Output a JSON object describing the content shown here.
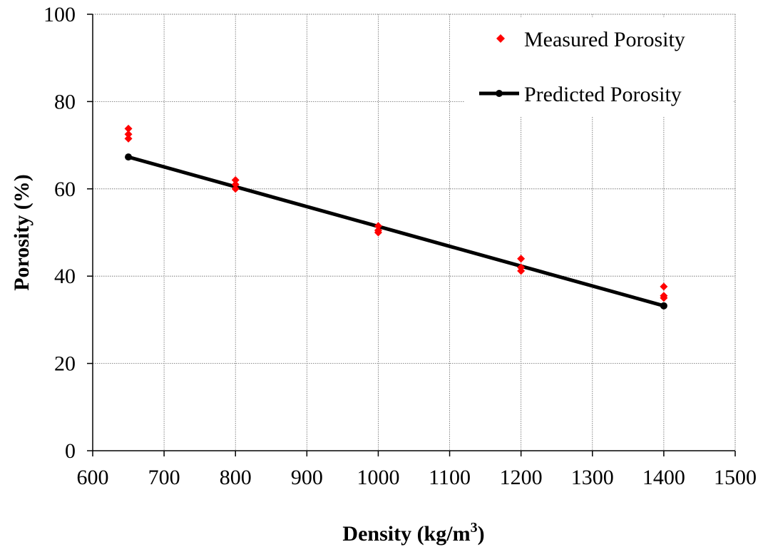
{
  "chart_data": {
    "type": "scatter",
    "title": "",
    "xlabel_main": "Density (kg/m",
    "xlabel_sup": "3",
    "xlabel_tail": ")",
    "ylabel": "Porosity (%)",
    "xlim": [
      600,
      1500
    ],
    "ylim": [
      0,
      100
    ],
    "x_ticks": [
      600,
      700,
      800,
      900,
      1000,
      1100,
      1200,
      1300,
      1400,
      1500
    ],
    "y_ticks": [
      0,
      20,
      40,
      60,
      80,
      100
    ],
    "grid": true,
    "legend_position": "top-right",
    "series": [
      {
        "name": "Measured Porosity",
        "kind": "scatter",
        "marker": "diamond",
        "color": "#ff0000",
        "points": [
          [
            650,
            73.8
          ],
          [
            650,
            72.5
          ],
          [
            650,
            71.5
          ],
          [
            800,
            62.0
          ],
          [
            800,
            61.0
          ],
          [
            800,
            60.0
          ],
          [
            1000,
            51.5
          ],
          [
            1000,
            50.5
          ],
          [
            1000,
            50.0
          ],
          [
            1200,
            44.0
          ],
          [
            1200,
            42.0
          ],
          [
            1200,
            41.2
          ],
          [
            1400,
            37.6
          ],
          [
            1400,
            35.5
          ],
          [
            1400,
            35.0
          ]
        ]
      },
      {
        "name": "Predicted Porosity",
        "kind": "line",
        "marker": "circle",
        "color": "#000000",
        "points": [
          [
            650,
            67.3
          ],
          [
            1400,
            33.2
          ]
        ]
      }
    ]
  }
}
